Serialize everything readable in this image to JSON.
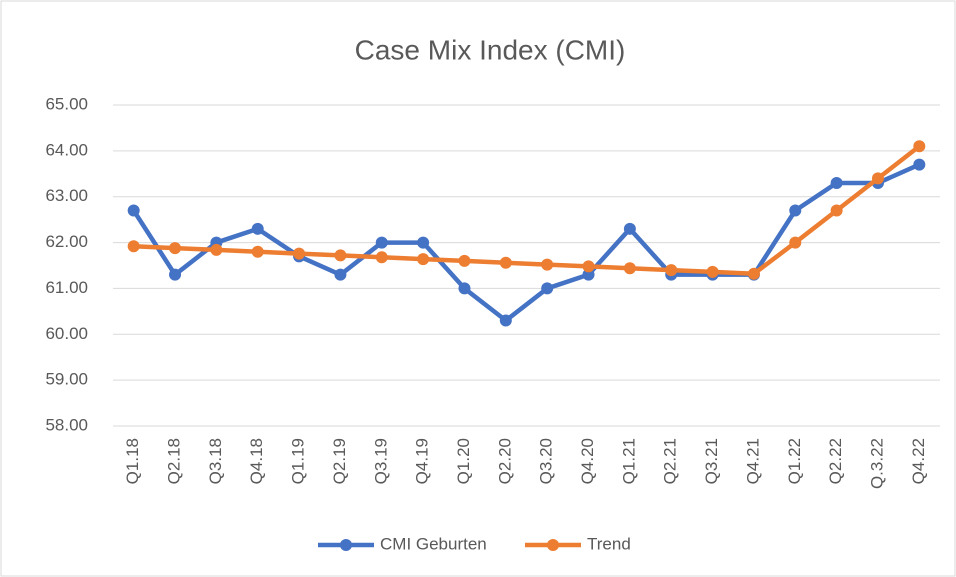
{
  "chart_data": {
    "type": "line",
    "title": "Case Mix Index (CMI)",
    "categories": [
      "Q1.18",
      "Q2.18",
      "Q3.18",
      "Q4.18",
      "Q1.19",
      "Q2.19",
      "Q3.19",
      "Q4.19",
      "Q1.20",
      "Q2.20",
      "Q3.20",
      "Q4.20",
      "Q1.21",
      "Q2.21",
      "Q3.21",
      "Q4.21",
      "Q1.22",
      "Q2.22",
      "Q.3.22",
      "Q4.22"
    ],
    "series": [
      {
        "name": "CMI Geburten",
        "color": "#4472c4",
        "values": [
          62.7,
          61.3,
          62.0,
          62.3,
          61.7,
          61.3,
          62.0,
          62.0,
          61.0,
          60.3,
          61.0,
          61.3,
          62.3,
          61.3,
          61.3,
          61.3,
          62.7,
          63.3,
          63.3,
          63.7
        ]
      },
      {
        "name": "Trend",
        "color": "#ed7d31",
        "values": [
          61.92,
          61.88,
          61.84,
          61.8,
          61.76,
          61.72,
          61.68,
          61.64,
          61.6,
          61.56,
          61.52,
          61.48,
          61.44,
          61.4,
          61.36,
          61.32,
          62.0,
          62.7,
          63.4,
          64.1
        ]
      }
    ],
    "ylim": [
      58,
      65
    ],
    "yticks": [
      {
        "value": 58,
        "label": "58.00"
      },
      {
        "value": 59,
        "label": "59.00"
      },
      {
        "value": 60,
        "label": "60.00"
      },
      {
        "value": 61,
        "label": "61.00"
      },
      {
        "value": 62,
        "label": "62.00"
      },
      {
        "value": 63,
        "label": "63.00"
      },
      {
        "value": 64,
        "label": "64.00"
      },
      {
        "value": 65,
        "label": "65.00"
      }
    ],
    "grid": true,
    "legend": "bottom"
  }
}
